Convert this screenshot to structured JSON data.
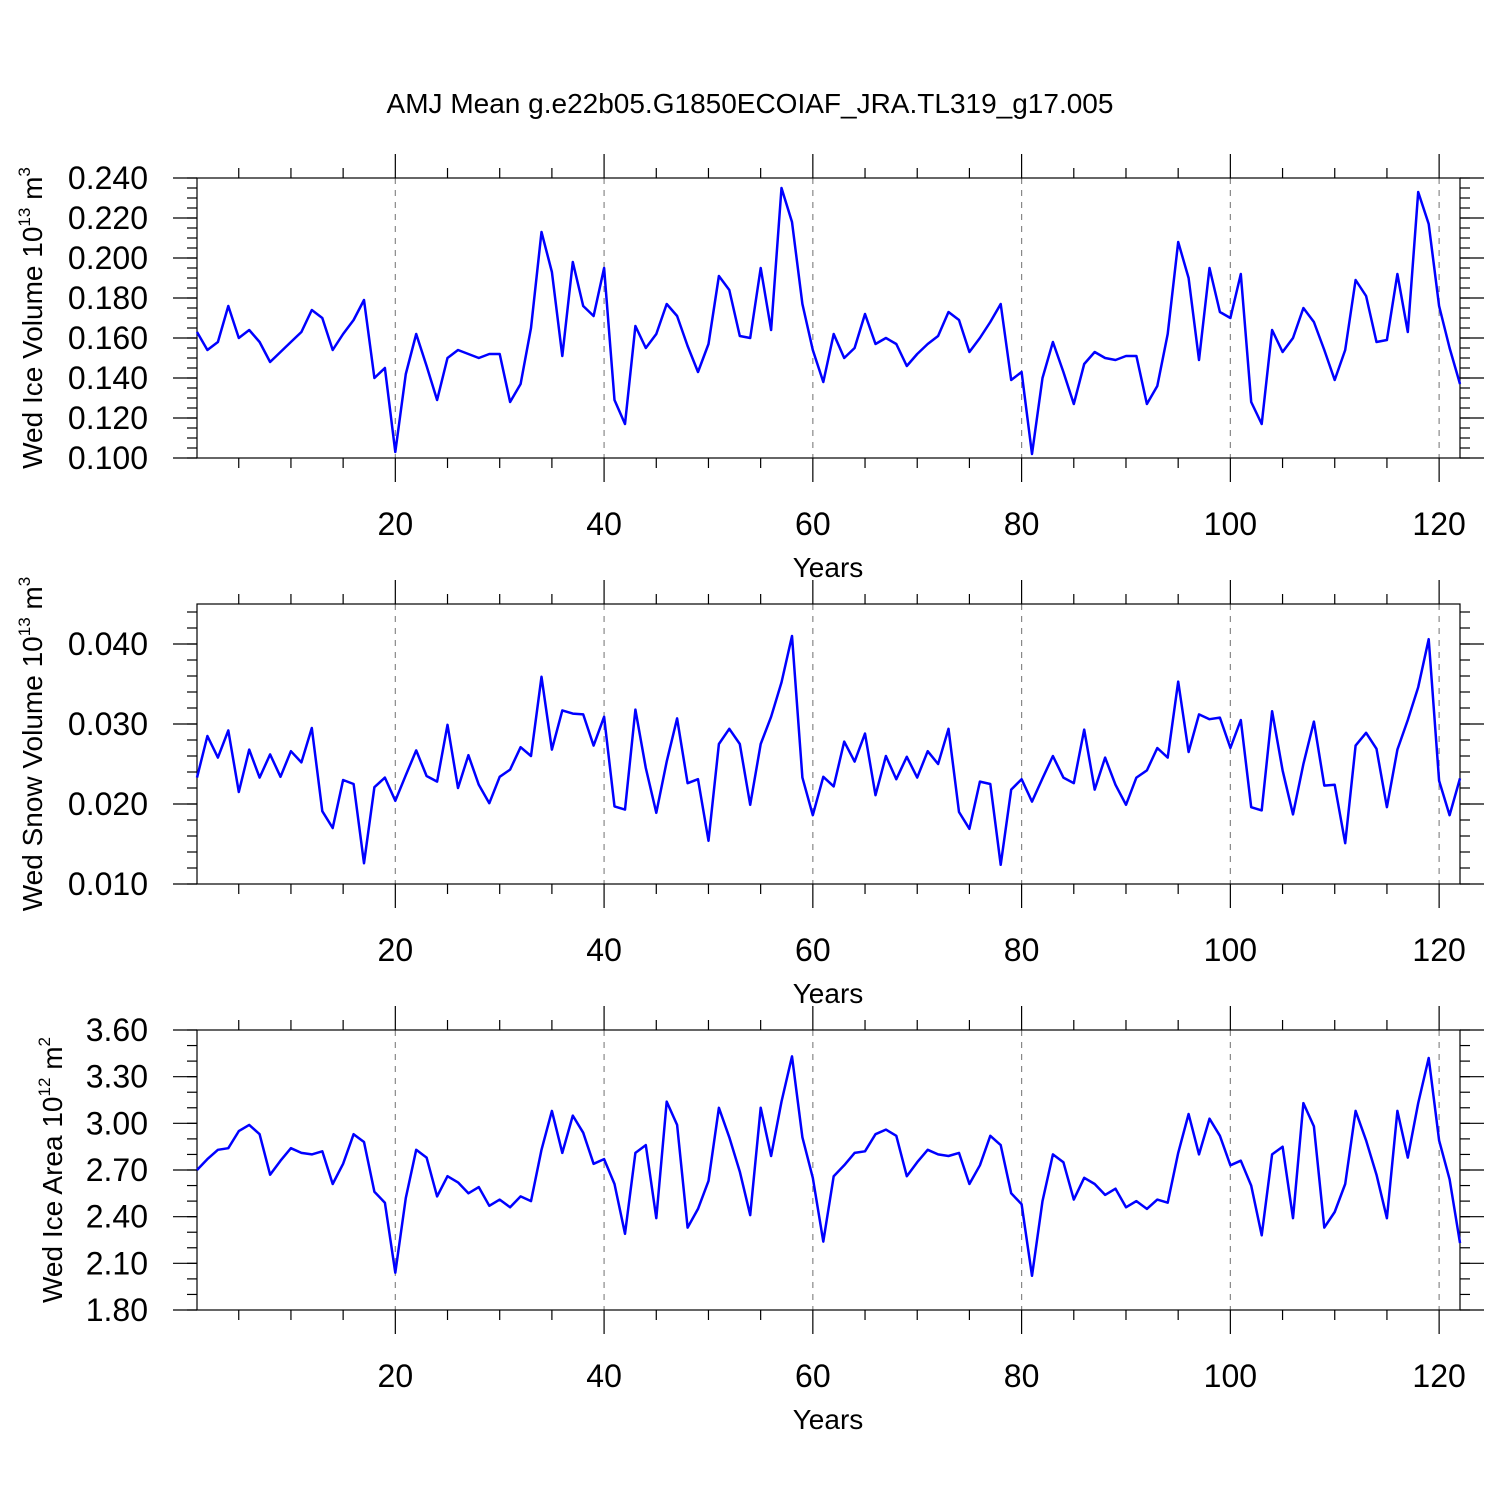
{
  "title": "AMJ Mean g.e22b05.G1850ECOIAF_JRA.TL319_g17.005",
  "colors": {
    "series": "#0000ff",
    "grid": "#888888",
    "axis": "#000000"
  },
  "chart_data": [
    {
      "type": "line",
      "title": "AMJ Mean g.e22b05.G1850ECOIAF_JRA.TL319_g17.005",
      "ylabel": {
        "main": "Wed Ice Volume 10",
        "exp1": "13",
        "mid": " m",
        "exp2": "3"
      },
      "xlabel": "Years",
      "xlim": [
        1,
        122
      ],
      "ylim": [
        0.1,
        0.24
      ],
      "xticks": [
        20,
        40,
        60,
        80,
        100,
        120
      ],
      "xtick_labels": [
        "20",
        "40",
        "60",
        "80",
        "100",
        "120"
      ],
      "yticks": [
        0.1,
        0.12,
        0.14,
        0.16,
        0.18,
        0.2,
        0.22,
        0.24
      ],
      "ytick_labels": [
        "0.100",
        "0.120",
        "0.140",
        "0.160",
        "0.180",
        "0.200",
        "0.220",
        "0.240"
      ],
      "yminor_step": 0.005,
      "grid": "vertical dashed",
      "values": [
        0.163,
        0.154,
        0.158,
        0.176,
        0.16,
        0.164,
        0.158,
        0.148,
        0.153,
        0.158,
        0.163,
        0.174,
        0.17,
        0.154,
        0.162,
        0.169,
        0.179,
        0.14,
        0.145,
        0.103,
        0.142,
        0.162,
        0.146,
        0.129,
        0.15,
        0.154,
        0.152,
        0.15,
        0.152,
        0.152,
        0.128,
        0.137,
        0.165,
        0.213,
        0.193,
        0.151,
        0.198,
        0.176,
        0.171,
        0.195,
        0.129,
        0.117,
        0.166,
        0.155,
        0.162,
        0.177,
        0.171,
        0.156,
        0.143,
        0.157,
        0.191,
        0.184,
        0.161,
        0.16,
        0.195,
        0.164,
        0.235,
        0.218,
        0.177,
        0.154,
        0.138,
        0.162,
        0.15,
        0.155,
        0.172,
        0.157,
        0.16,
        0.157,
        0.146,
        0.152,
        0.157,
        0.161,
        0.173,
        0.169,
        0.153,
        0.16,
        0.168,
        0.177,
        0.139,
        0.143,
        0.102,
        0.14,
        0.158,
        0.143,
        0.127,
        0.147,
        0.153,
        0.15,
        0.149,
        0.151,
        0.151,
        0.127,
        0.136,
        0.162,
        0.208,
        0.19,
        0.149,
        0.195,
        0.173,
        0.17,
        0.192,
        0.128,
        0.117,
        0.164,
        0.153,
        0.16,
        0.175,
        0.168,
        0.154,
        0.139,
        0.154,
        0.189,
        0.181,
        0.158,
        0.159,
        0.192,
        0.163,
        0.233,
        0.217,
        0.176,
        0.155,
        0.137
      ]
    },
    {
      "type": "line",
      "ylabel": {
        "main": "Wed Snow Volume 10",
        "exp1": "13",
        "mid": " m",
        "exp2": "3"
      },
      "xlabel": "Years",
      "xlim": [
        1,
        122
      ],
      "ylim": [
        0.01,
        0.045
      ],
      "xticks": [
        20,
        40,
        60,
        80,
        100,
        120
      ],
      "xtick_labels": [
        "20",
        "40",
        "60",
        "80",
        "100",
        "120"
      ],
      "yticks": [
        0.01,
        0.02,
        0.03,
        0.04
      ],
      "ytick_labels": [
        "0.010",
        "0.020",
        "0.030",
        "0.040"
      ],
      "yminor_step": 0.002,
      "grid": "vertical dashed",
      "values": [
        0.0233,
        0.0285,
        0.0258,
        0.0292,
        0.0215,
        0.0268,
        0.0233,
        0.0262,
        0.0234,
        0.0266,
        0.0252,
        0.0295,
        0.0191,
        0.017,
        0.023,
        0.0225,
        0.0126,
        0.0221,
        0.0233,
        0.0204,
        0.0236,
        0.0267,
        0.0235,
        0.0228,
        0.0299,
        0.022,
        0.0261,
        0.0224,
        0.0201,
        0.0234,
        0.0243,
        0.0271,
        0.026,
        0.0359,
        0.0268,
        0.0317,
        0.0313,
        0.0312,
        0.0273,
        0.0309,
        0.0197,
        0.0193,
        0.0318,
        0.0245,
        0.0189,
        0.0253,
        0.0307,
        0.0226,
        0.0231,
        0.0154,
        0.0275,
        0.0294,
        0.0275,
        0.0199,
        0.0275,
        0.0309,
        0.0352,
        0.041,
        0.0233,
        0.0186,
        0.0234,
        0.0222,
        0.0278,
        0.0253,
        0.0288,
        0.0211,
        0.026,
        0.0231,
        0.0259,
        0.0233,
        0.0266,
        0.025,
        0.0294,
        0.019,
        0.0169,
        0.0228,
        0.0225,
        0.0124,
        0.0218,
        0.0231,
        0.0203,
        0.0232,
        0.026,
        0.0233,
        0.0226,
        0.0293,
        0.0218,
        0.0258,
        0.0224,
        0.0199,
        0.0233,
        0.0242,
        0.027,
        0.0258,
        0.0353,
        0.0265,
        0.0312,
        0.0306,
        0.0308,
        0.027,
        0.0305,
        0.0196,
        0.0192,
        0.0316,
        0.0242,
        0.0187,
        0.025,
        0.0303,
        0.0223,
        0.0224,
        0.0151,
        0.0273,
        0.0289,
        0.0269,
        0.0196,
        0.0268,
        0.0305,
        0.0346,
        0.0406,
        0.0229,
        0.0186,
        0.0232
      ]
    },
    {
      "type": "line",
      "ylabel": {
        "main": "Wed Ice Area 10",
        "exp1": "12",
        "mid": " m",
        "exp2": "2"
      },
      "xlabel": "Years",
      "xlim": [
        1,
        122
      ],
      "ylim": [
        1.8,
        3.6
      ],
      "xticks": [
        20,
        40,
        60,
        80,
        100,
        120
      ],
      "xtick_labels": [
        "20",
        "40",
        "60",
        "80",
        "100",
        "120"
      ],
      "yticks": [
        1.8,
        2.1,
        2.4,
        2.7,
        3.0,
        3.3,
        3.6
      ],
      "ytick_labels": [
        "1.80",
        "2.10",
        "2.40",
        "2.70",
        "3.00",
        "3.30",
        "3.60"
      ],
      "yminor_step": 0.1,
      "grid": "vertical dashed",
      "values": [
        2.7,
        2.77,
        2.83,
        2.84,
        2.95,
        2.99,
        2.93,
        2.67,
        2.76,
        2.84,
        2.81,
        2.8,
        2.82,
        2.61,
        2.74,
        2.93,
        2.88,
        2.56,
        2.49,
        2.04,
        2.52,
        2.83,
        2.78,
        2.53,
        2.66,
        2.62,
        2.55,
        2.59,
        2.47,
        2.51,
        2.46,
        2.53,
        2.5,
        2.83,
        3.08,
        2.81,
        3.05,
        2.94,
        2.74,
        2.77,
        2.61,
        2.29,
        2.81,
        2.86,
        2.39,
        3.14,
        2.99,
        2.33,
        2.45,
        2.63,
        3.1,
        2.91,
        2.69,
        2.41,
        3.1,
        2.79,
        3.14,
        3.43,
        2.91,
        2.65,
        2.24,
        2.66,
        2.73,
        2.81,
        2.82,
        2.93,
        2.96,
        2.92,
        2.66,
        2.75,
        2.83,
        2.8,
        2.79,
        2.81,
        2.61,
        2.73,
        2.92,
        2.86,
        2.55,
        2.48,
        2.02,
        2.5,
        2.8,
        2.75,
        2.51,
        2.65,
        2.61,
        2.54,
        2.58,
        2.46,
        2.5,
        2.45,
        2.51,
        2.49,
        2.81,
        3.06,
        2.8,
        3.03,
        2.92,
        2.73,
        2.76,
        2.6,
        2.28,
        2.8,
        2.85,
        2.39,
        3.13,
        2.98,
        2.33,
        2.43,
        2.61,
        3.08,
        2.89,
        2.67,
        2.39,
        3.08,
        2.78,
        3.13,
        3.42,
        2.89,
        2.64,
        2.23
      ]
    }
  ]
}
